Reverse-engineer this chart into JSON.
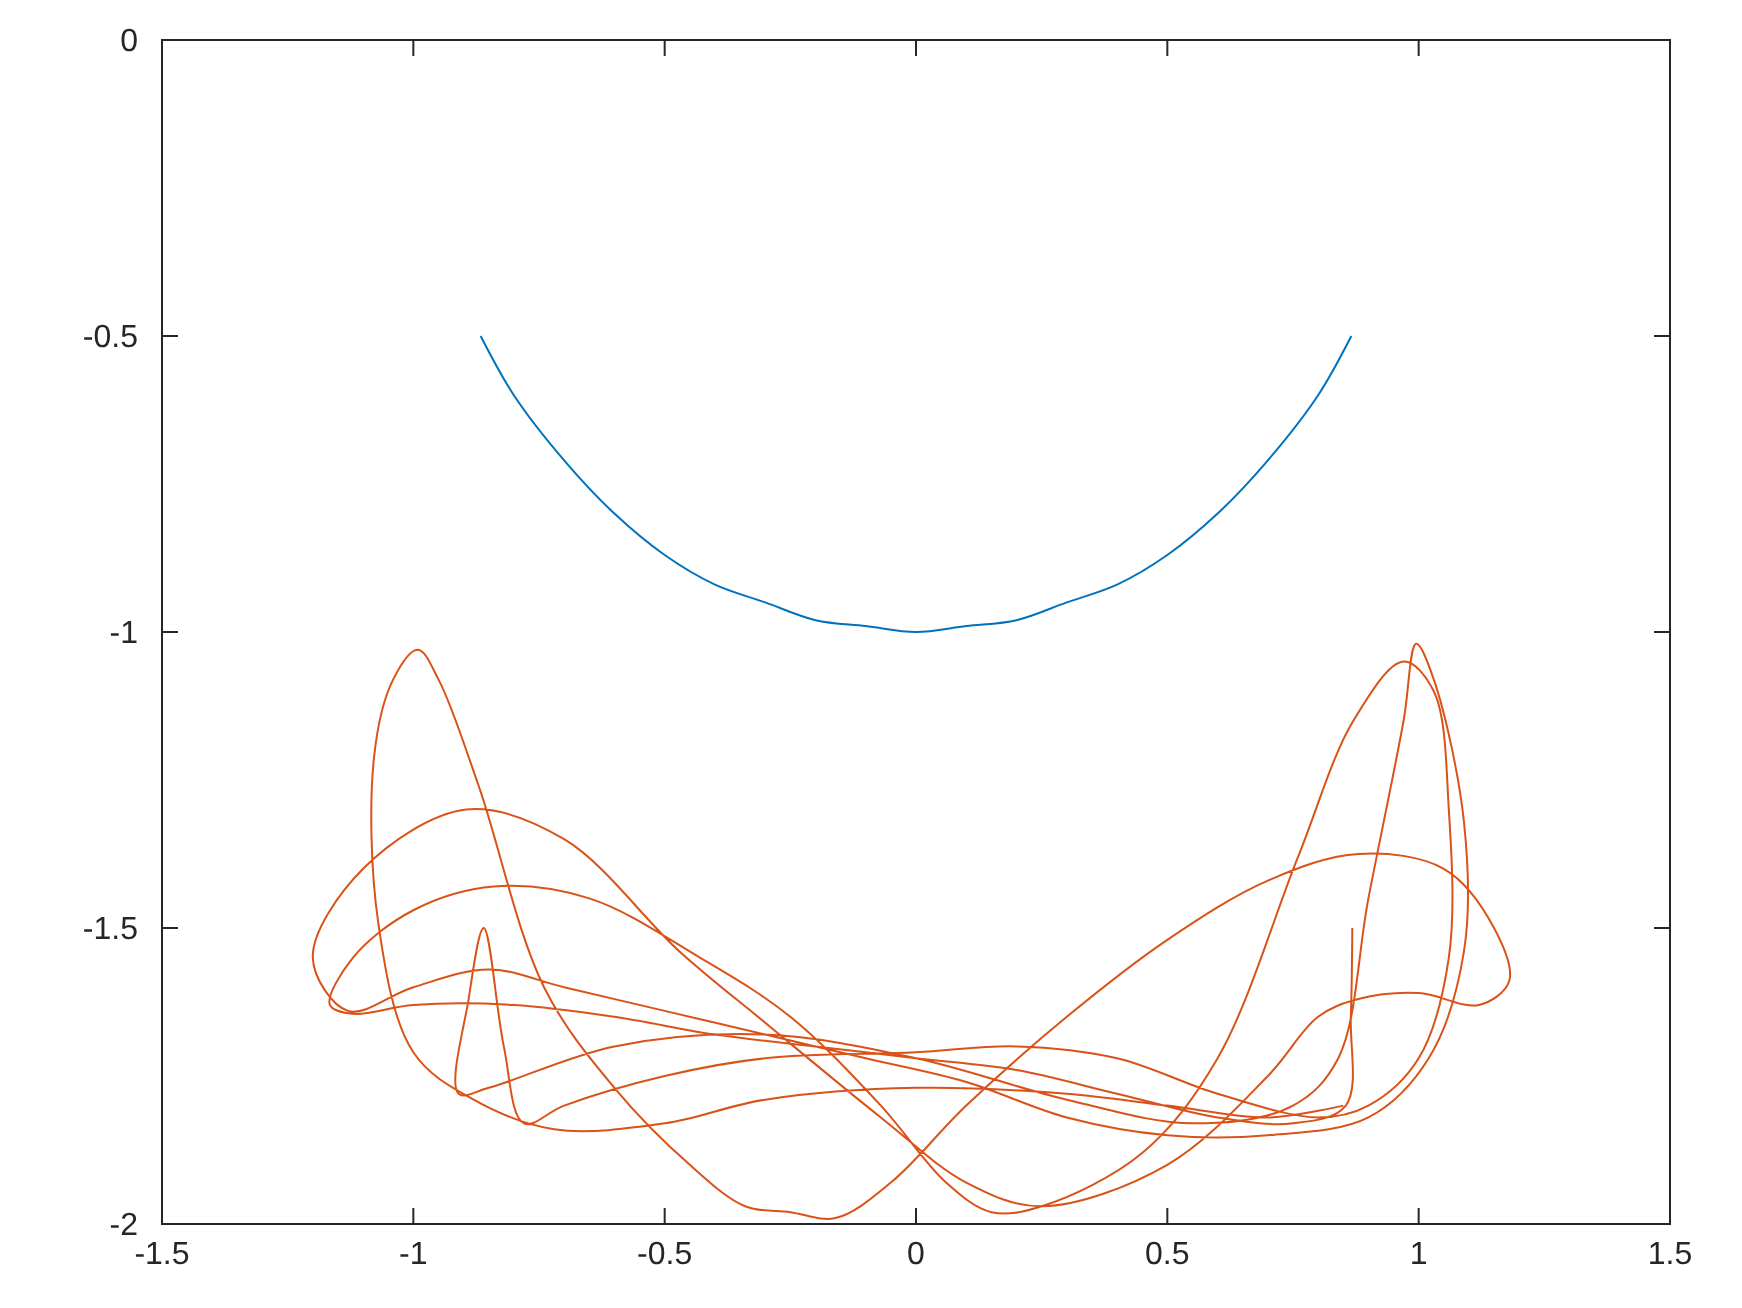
{
  "chart_data": {
    "type": "line",
    "xlim": [
      -1.5,
      1.5
    ],
    "ylim": [
      -2,
      0
    ],
    "xticks": [
      -1.5,
      -1,
      -0.5,
      0,
      0.5,
      1,
      1.5
    ],
    "yticks": [
      -2,
      -1.5,
      -1,
      -0.5,
      0
    ],
    "grid": false,
    "series": [
      {
        "color": "#0072bd",
        "x": [
          -0.866,
          -0.8,
          -0.7,
          -0.6,
          -0.5,
          -0.4,
          -0.3,
          -0.2,
          -0.1,
          0,
          0.1,
          0.2,
          0.3,
          0.4,
          0.5,
          0.6,
          0.7,
          0.8,
          0.866
        ],
        "values": [
          -0.5,
          -0.6,
          -0.71,
          -0.8,
          -0.87,
          -0.92,
          -0.95,
          -0.98,
          -0.99,
          -1,
          -0.99,
          -0.98,
          -0.95,
          -0.92,
          -0.87,
          -0.8,
          -0.71,
          -0.6,
          -0.5
        ]
      },
      {
        "color": "#d95319",
        "x": [
          0.868,
          0.865,
          0.855,
          0.75,
          0.6,
          0.4,
          0.2,
          0,
          -0.2,
          -0.4,
          -0.6,
          -0.8,
          -1.0,
          -1.12,
          -1.166,
          -1.12,
          -1.0,
          -0.84,
          -0.65,
          -0.43,
          -0.25,
          -0.07,
          0.06,
          0.15,
          0.25,
          0.45,
          0.6,
          0.76,
          0.87,
          0.97,
          1.03,
          1.06,
          1.06,
          1.0,
          0.9,
          0.8,
          0.6,
          0.4,
          0.2,
          0,
          -0.3,
          -0.5,
          -0.7,
          -0.78,
          -0.82,
          -0.86,
          -0.89,
          -0.91,
          -0.85,
          -0.6,
          -0.3,
          0,
          0.3,
          0.55,
          0.75,
          0.84,
          0.9,
          0.97,
          0.995,
          1.03,
          1.09,
          1.09,
          1.02,
          0.9,
          0.7,
          0.5,
          0.3,
          0.1,
          -0.1,
          -0.3,
          -0.5,
          -0.7,
          -0.85,
          -1.0,
          -1.13,
          -1.2,
          -1.1,
          -0.895,
          -0.7,
          -0.47,
          -0.3,
          -0.07,
          0.1,
          0.25,
          0.5,
          0.7,
          0.8,
          0.88,
          1.0,
          1.12,
          1.18,
          1.15,
          1.05,
          0.88,
          0.7,
          0.5,
          0.3,
          0.1,
          -0.05,
          -0.16,
          -0.25,
          -0.34,
          -0.45,
          -0.6,
          -0.74,
          -0.87,
          -0.95,
          -0.991,
          -1.04,
          -1.078,
          -1.07,
          -1.0,
          -0.88,
          -0.72,
          -0.5,
          -0.3,
          0,
          0.3,
          0.5,
          0.7,
          0.85
        ],
        "values": [
          -1.5,
          -1.65,
          -1.8,
          -1.83,
          -1.82,
          -1.78,
          -1.74,
          -1.72,
          -1.7,
          -1.68,
          -1.65,
          -1.63,
          -1.63,
          -1.645,
          -1.63,
          -1.55,
          -1.47,
          -1.43,
          -1.45,
          -1.55,
          -1.65,
          -1.8,
          -1.93,
          -1.98,
          -1.97,
          -1.88,
          -1.72,
          -1.38,
          -1.15,
          -1.05,
          -1.1,
          -1.3,
          -1.55,
          -1.72,
          -1.8,
          -1.82,
          -1.78,
          -1.72,
          -1.7,
          -1.71,
          -1.72,
          -1.75,
          -1.8,
          -1.83,
          -1.7,
          -1.5,
          -1.62,
          -1.78,
          -1.77,
          -1.7,
          -1.68,
          -1.72,
          -1.79,
          -1.83,
          -1.8,
          -1.72,
          -1.45,
          -1.15,
          -1.02,
          -1.08,
          -1.32,
          -1.54,
          -1.72,
          -1.82,
          -1.85,
          -1.85,
          -1.82,
          -1.76,
          -1.72,
          -1.68,
          -1.64,
          -1.6,
          -1.57,
          -1.6,
          -1.64,
          -1.55,
          -1.4,
          -1.3,
          -1.35,
          -1.54,
          -1.66,
          -1.82,
          -1.93,
          -1.97,
          -1.9,
          -1.75,
          -1.65,
          -1.62,
          -1.61,
          -1.63,
          -1.59,
          -1.5,
          -1.4,
          -1.375,
          -1.42,
          -1.52,
          -1.65,
          -1.8,
          -1.93,
          -1.99,
          -1.98,
          -1.97,
          -1.9,
          -1.77,
          -1.6,
          -1.26,
          -1.08,
          -1.03,
          -1.08,
          -1.21,
          -1.49,
          -1.71,
          -1.79,
          -1.84,
          -1.83,
          -1.79,
          -1.77,
          -1.78,
          -1.8,
          -1.82,
          -1.8
        ]
      }
    ]
  }
}
